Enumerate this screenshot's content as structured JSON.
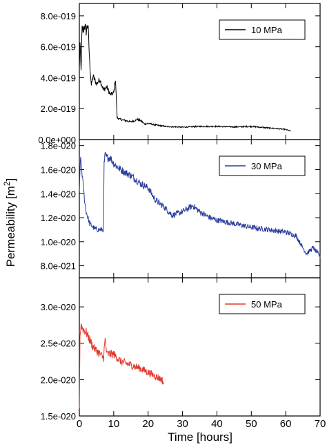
{
  "chart_data": {
    "type": "line",
    "shared_x": {
      "label": "Time [hours]",
      "range": [
        0,
        70
      ],
      "ticks": [
        0,
        10,
        20,
        30,
        40,
        50,
        60,
        70
      ],
      "tick_labels": [
        "0",
        "10",
        "20",
        "30",
        "40",
        "50",
        "60",
        "70"
      ]
    },
    "ylabel": "Permeability [m",
    "ylabel_sup": "2",
    "ylabel_close": "]",
    "panels": [
      {
        "legend": "10 MPa",
        "color": "#000000",
        "ylim": [
          0,
          8.8e-19
        ],
        "ticks": [
          0,
          2e-19,
          4e-19,
          6e-19,
          8e-19
        ],
        "tick_labels": [
          "0.0e+000",
          "2.0e-019",
          "4.0e-019",
          "6.0e-019",
          "8.0e-019"
        ],
        "noise": 0.05,
        "x": [
          0,
          0.2,
          0.5,
          0.8,
          1.0,
          1.5,
          2.0,
          2.5,
          3.0,
          3.5,
          4,
          5,
          6,
          7,
          8,
          9,
          10,
          10.5,
          11,
          12,
          15,
          17,
          18,
          19,
          20,
          22,
          25,
          30,
          35,
          40,
          45,
          50,
          55,
          58,
          60,
          61.5
        ],
        "y": [
          4.6e-19,
          6.2e-19,
          4.4e-19,
          7.2e-19,
          6.9e-19,
          7.4e-19,
          7e-19,
          7.5e-19,
          5e-19,
          3.5e-19,
          4.1e-19,
          3.6e-19,
          3.9e-19,
          3.2e-19,
          3.4e-19,
          2.9e-19,
          3e-19,
          3.9e-19,
          1.4e-19,
          1.3e-19,
          1.15e-19,
          1.3e-19,
          1.2e-19,
          1e-19,
          1.05e-19,
          9.5e-20,
          8.5e-20,
          8e-20,
          8.5e-20,
          8.5e-20,
          8.2e-20,
          8.5e-20,
          7.5e-20,
          7e-20,
          6.5e-20,
          5.5e-20
        ]
      },
      {
        "legend": "30 MPa",
        "color": "#2b3d9c",
        "ylim": [
          7e-21,
          1.85e-20
        ],
        "ticks": [
          8e-21,
          1e-20,
          1.2e-20,
          1.4e-20,
          1.6e-20,
          1.8e-20
        ],
        "tick_labels": [
          "8.0e-021",
          "1.0e-020",
          "1.2e-020",
          "1.4e-020",
          "1.6e-020",
          "1.8e-020"
        ],
        "noise": 0.02,
        "x": [
          0,
          0.3,
          0.7,
          1.0,
          1.5,
          2,
          3,
          4,
          5,
          6,
          7.0,
          7.2,
          7.5,
          8,
          9,
          10,
          12,
          15,
          18,
          20,
          22,
          25,
          27,
          30,
          33,
          35,
          38,
          40,
          45,
          50,
          55,
          60,
          63,
          65,
          66,
          68,
          70
        ],
        "y": [
          1.4e-20,
          1.7e-20,
          1.6e-20,
          1.5e-20,
          1.35e-20,
          1.25e-20,
          1.15e-20,
          1.12e-20,
          1.1e-20,
          1.1e-20,
          1.1e-20,
          1.65e-20,
          1.72e-20,
          1.7e-20,
          1.7e-20,
          1.65e-20,
          1.6e-20,
          1.55e-20,
          1.48e-20,
          1.45e-20,
          1.35e-20,
          1.28e-20,
          1.22e-20,
          1.25e-20,
          1.3e-20,
          1.25e-20,
          1.2e-20,
          1.18e-20,
          1.15e-20,
          1.12e-20,
          1.1e-20,
          1.08e-20,
          1.05e-20,
          9.5e-21,
          9e-21,
          9.5e-21,
          8.8e-21
        ]
      },
      {
        "legend": "50 MPa",
        "color": "#e03a2e",
        "ylim": [
          1.5e-20,
          3.4e-20
        ],
        "ticks": [
          1.5e-20,
          2e-20,
          2.5e-20,
          3e-20
        ],
        "tick_labels": [
          "1.5e-020",
          "2.0e-020",
          "2.5e-020",
          "3.0e-020"
        ],
        "noise": 0.025,
        "x": [
          0,
          0.2,
          0.5,
          1,
          2,
          3,
          4,
          5,
          6,
          7,
          7.5,
          8,
          9,
          10,
          12,
          15,
          18,
          20,
          22,
          24,
          24.5
        ],
        "y": [
          1.6e-20,
          2.6e-20,
          2.75e-20,
          2.7e-20,
          2.65e-20,
          2.55e-20,
          2.45e-20,
          2.4e-20,
          2.35e-20,
          2.3e-20,
          2.55e-20,
          2.35e-20,
          2.35e-20,
          2.35e-20,
          2.25e-20,
          2.2e-20,
          2.15e-20,
          2.1e-20,
          2.05e-20,
          2e-20,
          1.95e-20
        ]
      }
    ]
  }
}
